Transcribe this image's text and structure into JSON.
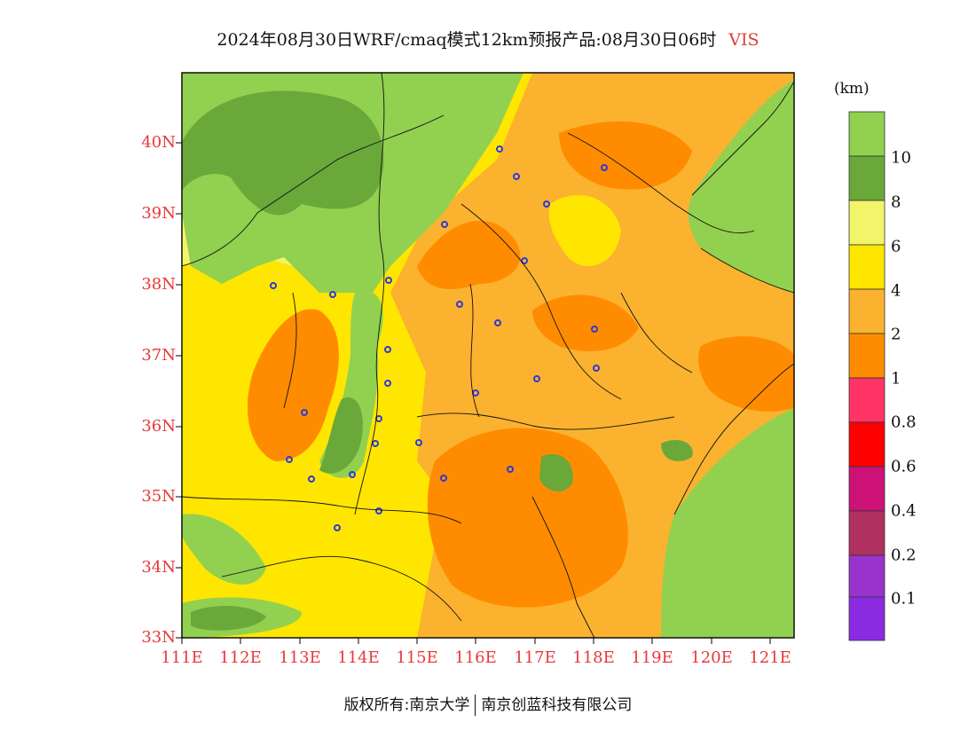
{
  "title": {
    "main": "2024年08月30日WRF/cmaq模式12km预报产品:08月30日06时",
    "variable": "VIS"
  },
  "map": {
    "lat_labels": [
      "40N",
      "39N",
      "38N",
      "37N",
      "36N",
      "35N",
      "34N",
      "33N"
    ],
    "lon_labels": [
      "111E",
      "112E",
      "113E",
      "114E",
      "115E",
      "116E",
      "117E",
      "118E",
      "119E",
      "120E",
      "121E"
    ],
    "extent": {
      "lon": [
        111,
        121.4
      ],
      "lat": [
        33,
        41
      ]
    }
  },
  "legend": {
    "unit": "(km)",
    "labels": [
      "10",
      "8",
      "6",
      "4",
      "2",
      "1",
      "0.8",
      "0.6",
      "0.4",
      "0.2",
      "0.1"
    ],
    "colors": [
      "#92d050",
      "#6aa83a",
      "#f2f56a",
      "#ffe600",
      "#fbb22f",
      "#ff8c00",
      "#ff3366",
      "#ff0000",
      "#cc1177",
      "#b03060",
      "#9933cc",
      "#8a2be2"
    ]
  },
  "footer": {
    "left": "版权所有:南京大学",
    "right": "南京创蓝科技有限公司"
  }
}
